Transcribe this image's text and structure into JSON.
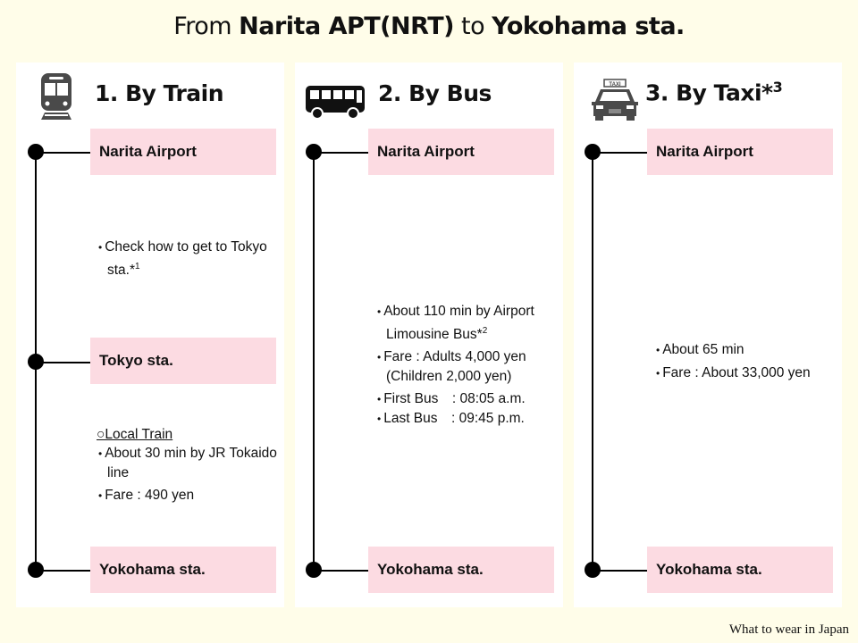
{
  "title": {
    "prefix": "From ",
    "origin": "Narita APT(NRT)",
    "mid": " to ",
    "dest": "Yokohama sta."
  },
  "colors": {
    "background": "#fffde9",
    "panel": "#ffffff",
    "stop_box": "#fcdbe2"
  },
  "routes": [
    {
      "heading": "1. By Train",
      "icon": "train-icon",
      "stops": [
        "Narita Airport",
        "Tokyo sta.",
        "Yokohama sta."
      ],
      "notes1": {
        "l1": "Check how to get to Tokyo sta.*",
        "s1": "1"
      },
      "notes2": {
        "sub": "○Local Train",
        "l1": "About 30 min by JR Tokaido line",
        "l2": "Fare : 490 yen"
      }
    },
    {
      "heading": "2. By Bus",
      "icon": "bus-icon",
      "stops": [
        "Narita Airport",
        "Yokohama sta."
      ],
      "notes": {
        "l1": "About 110 min by Airport Limousine Bus*",
        "s1": "2",
        "l2": "Fare : Adults 4,000 yen (Children 2,000 yen)",
        "l3": "First Bus　: 08:05 a.m.",
        "l4": "Last Bus　: 09:45 p.m."
      }
    },
    {
      "heading": "3. By Taxi*",
      "sup": "3",
      "icon": "taxi-icon",
      "taxi_sign": "TAXI",
      "stops": [
        "Narita Airport",
        "Yokohama sta."
      ],
      "notes": {
        "l1": "About 65 min",
        "l2": "Fare : About 33,000 yen"
      }
    }
  ],
  "footer": "What to wear in Japan"
}
